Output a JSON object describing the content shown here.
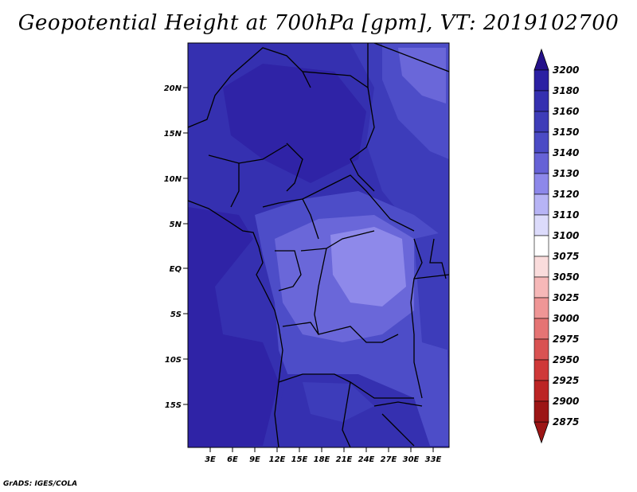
{
  "title": "Geopotential Height at 700hPa [gpm], VT: 2019102700",
  "credit": "GrADS: IGES/COLA",
  "map": {
    "lat_labels": [
      "20N",
      "15N",
      "10N",
      "5N",
      "EQ",
      "5S",
      "10S",
      "15S"
    ],
    "lon_labels": [
      "3E",
      "6E",
      "9E",
      "12E",
      "15E",
      "18E",
      "21E",
      "24E",
      "27E",
      "30E",
      "33E"
    ],
    "colors": {
      "c3200": "#2a0f8c",
      "c3180": "#2f23a6",
      "c3160": "#3530b0",
      "c3150": "#3d3cba",
      "c3140": "#4d4dc8",
      "c3130": "#6a67d9",
      "c3120": "#8e89ea",
      "c3110": "#b9b6f5",
      "c3100": "#dddcfb"
    }
  },
  "colorbar": {
    "labels": [
      "3200",
      "3180",
      "3160",
      "3150",
      "3140",
      "3130",
      "3120",
      "3110",
      "3100",
      "3075",
      "3050",
      "3025",
      "3000",
      "2975",
      "2950",
      "2925",
      "2900",
      "2875"
    ],
    "colors": [
      "#25128a",
      "#2b20a3",
      "#3530b0",
      "#3e3db8",
      "#4b4bc5",
      "#6662d6",
      "#8d88ea",
      "#b7b4f5",
      "#dcdbfb",
      "#ffffff",
      "#fadcdc",
      "#f6b8b8",
      "#ef9696",
      "#e57474",
      "#d95252",
      "#cf3838",
      "#bc2424",
      "#9c1515"
    ]
  }
}
